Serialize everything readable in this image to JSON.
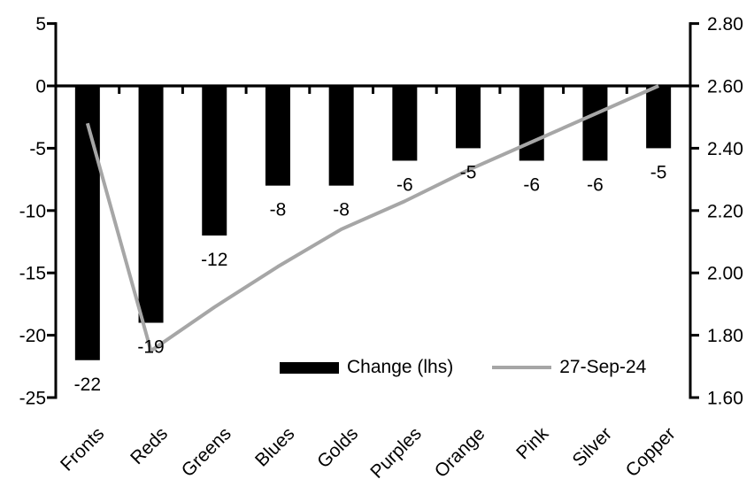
{
  "chart_data": {
    "type": "combo",
    "title": "",
    "categories": [
      "Fronts",
      "Reds",
      "Greens",
      "Blues",
      "Golds",
      "Purples",
      "Orange",
      "Pink",
      "Silver",
      "Copper"
    ],
    "series": [
      {
        "name": "Change (lhs)",
        "type": "bar",
        "axis": "left",
        "values": [
          -22,
          -19,
          -12,
          -8,
          -8,
          -6,
          -5,
          -6,
          -6,
          -5
        ],
        "data_labels": [
          "-22",
          "-19",
          "-12",
          "-8",
          "-8",
          "-6",
          "-5",
          "-6",
          "-6",
          "-5"
        ]
      },
      {
        "name": "27-Sep-24",
        "type": "line",
        "axis": "right",
        "values": [
          2.48,
          1.75,
          1.89,
          2.02,
          2.14,
          2.23,
          2.33,
          2.42,
          2.51,
          2.6
        ]
      }
    ],
    "left_axis": {
      "range": [
        -25,
        5
      ],
      "tick_step": 5,
      "tick_labels": [
        "5",
        "0",
        "-5",
        "-10",
        "-15",
        "-20",
        "-25"
      ],
      "tick_values": [
        5,
        0,
        -5,
        -10,
        -15,
        -20,
        -25
      ]
    },
    "right_axis": {
      "range": [
        1.6,
        2.8
      ],
      "tick_step": 0.2,
      "tick_labels": [
        "2.80",
        "2.60",
        "2.40",
        "2.20",
        "2.00",
        "1.80",
        "1.60"
      ],
      "tick_values": [
        2.8,
        2.6,
        2.4,
        2.2,
        2.0,
        1.8,
        1.6
      ]
    },
    "legend": {
      "position": "inside-bottom",
      "bar_label": "Change (lhs)",
      "line_label": "27-Sep-24"
    },
    "grid": false,
    "colors": {
      "bar": "#000000",
      "line": "#A6A6A6",
      "axis": "#000000",
      "text": "#000000",
      "background": "#FFFFFF"
    }
  }
}
